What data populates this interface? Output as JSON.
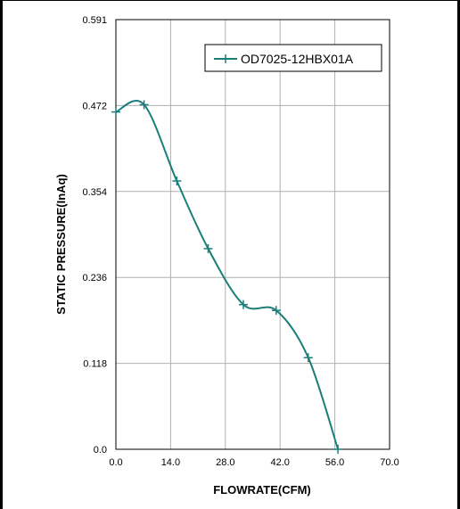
{
  "chart_data": {
    "type": "line",
    "xlabel": "FLOWRATE(CFM)",
    "ylabel": "STATIC PRESSURE(InAq)",
    "xlim": [
      0,
      70
    ],
    "ylim": [
      0,
      0.591
    ],
    "x_ticks": [
      "0.0",
      "14.0",
      "28.0",
      "42.0",
      "56.0",
      "70.0"
    ],
    "y_ticks": [
      "0.0",
      "0.118",
      "0.236",
      "0.354",
      "0.472",
      "0.591"
    ],
    "grid": true,
    "legend_position": "top-right",
    "series_color": "#1a7f7a",
    "series": [
      {
        "name": "OD7025-12HBX01A",
        "x": [
          0,
          7.2,
          15.6,
          23.6,
          32.6,
          41.0,
          49.2,
          56.8
        ],
        "y": [
          0.464,
          0.474,
          0.369,
          0.276,
          0.199,
          0.191,
          0.126,
          0.0
        ]
      }
    ]
  }
}
